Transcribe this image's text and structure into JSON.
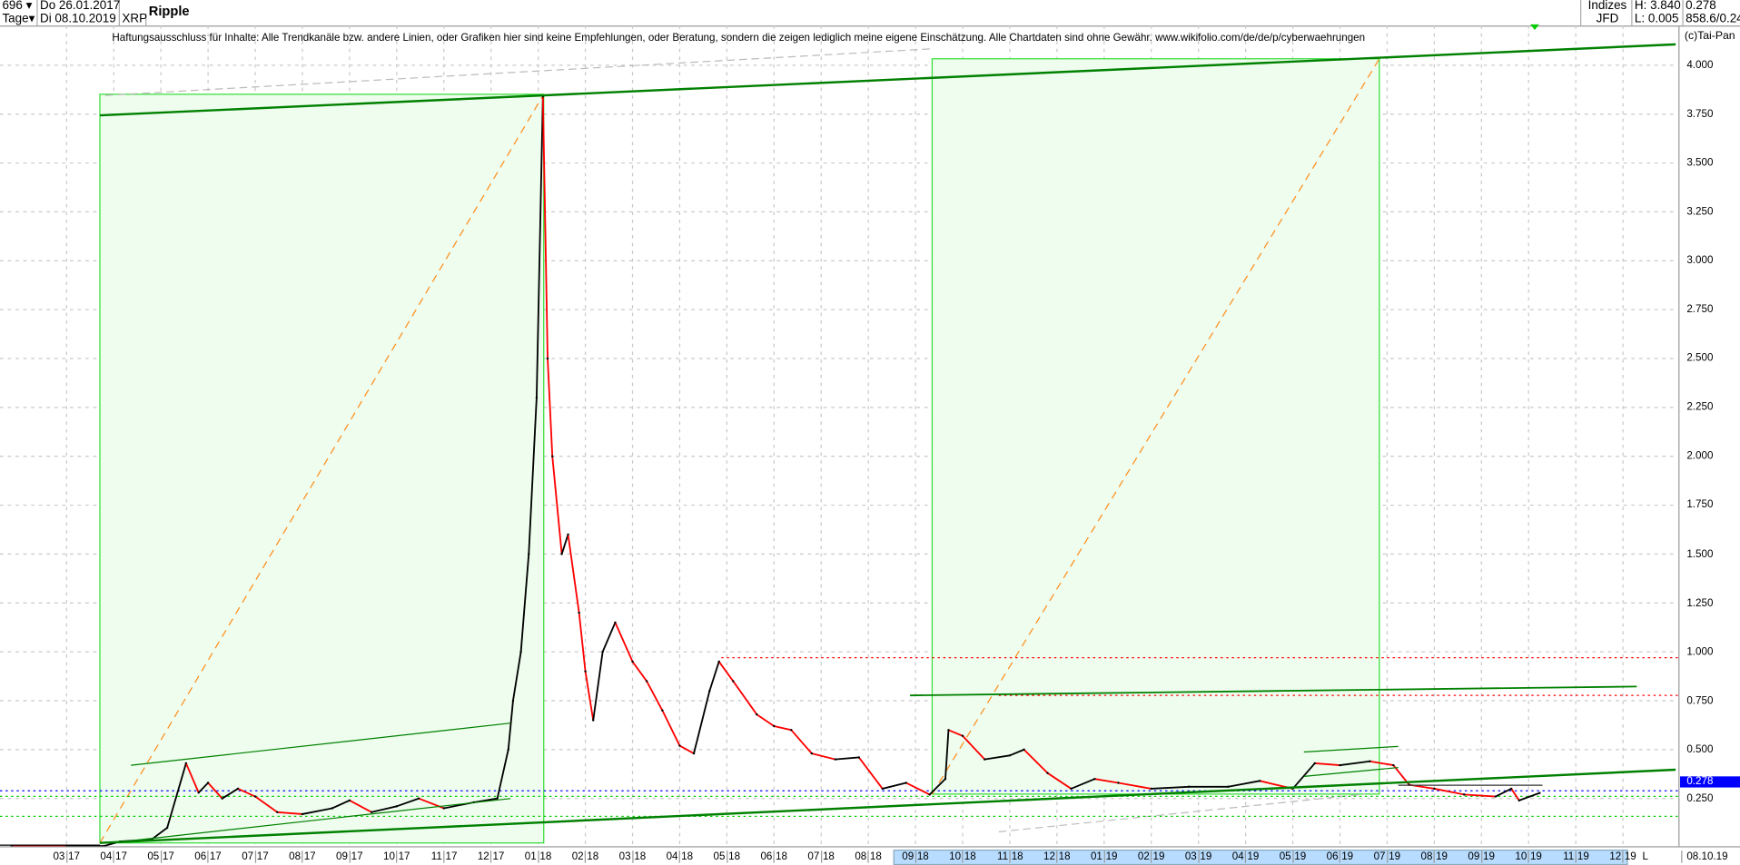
{
  "header": {
    "bars_count": "696",
    "period": "Tage",
    "date_from": "Do 26.01.2017",
    "date_to": "Di 08.10.2019",
    "symbol": "XRP",
    "name": "Ripple",
    "index_label": "Indizes",
    "source": "JFD",
    "high": "H: 3.840",
    "low": "L: 0.005",
    "last": "0.278",
    "extra": "858.6/0.24"
  },
  "disclaimer": "Haftungsausschluss für Inhalte: Alle Trendkanäle bzw. andere Linien, oder Grafiken hier sind keine Empfehlungen, oder Beratung, sondern die zeigen lediglich meine eigene Einschätzung. Alle Chartdaten sind ohne Gewähr.  www.wikifolio.com/de/de/p/cyberwaehrungen",
  "copyright": "(c)Tai-Pan",
  "footer": {
    "last_date": "08.10.19",
    "l_marker": "L"
  },
  "colors": {
    "up": "#000000",
    "down": "#ff0000",
    "trend": "#008000",
    "zone_fill": "#eefdee",
    "zone_border": "#33dd33",
    "fib": "#ff8c1a",
    "resistance": "#ff0000",
    "current": "#0000ff",
    "support": "#00cc00"
  },
  "chart_data": {
    "type": "line",
    "title": "Ripple",
    "ylim": [
      0,
      4.0
    ],
    "y_ticks": [
      "4.000",
      "3.750",
      "3.500",
      "3.250",
      "3.000",
      "2.750",
      "2.500",
      "2.250",
      "2.000",
      "1.750",
      "1.500",
      "1.250",
      "1.000",
      "0.750",
      "0.500",
      "0.250"
    ],
    "x_ticks": [
      [
        "03",
        "17"
      ],
      [
        "04",
        "17"
      ],
      [
        "05",
        "17"
      ],
      [
        "06",
        "17"
      ],
      [
        "07",
        "17"
      ],
      [
        "08",
        "17"
      ],
      [
        "09",
        "17"
      ],
      [
        "10",
        "17"
      ],
      [
        "11",
        "17"
      ],
      [
        "12",
        "17"
      ],
      [
        "01",
        "18"
      ],
      [
        "02",
        "18"
      ],
      [
        "03",
        "18"
      ],
      [
        "04",
        "18"
      ],
      [
        "05",
        "18"
      ],
      [
        "06",
        "18"
      ],
      [
        "07",
        "18"
      ],
      [
        "08",
        "18"
      ],
      [
        "09",
        "18"
      ],
      [
        "10",
        "18"
      ],
      [
        "11",
        "18"
      ],
      [
        "12",
        "18"
      ],
      [
        "01",
        "19"
      ],
      [
        "02",
        "19"
      ],
      [
        "03",
        "19"
      ],
      [
        "04",
        "19"
      ],
      [
        "05",
        "19"
      ],
      [
        "06",
        "19"
      ],
      [
        "07",
        "19"
      ],
      [
        "08",
        "19"
      ],
      [
        "09",
        "19"
      ],
      [
        "10",
        "19"
      ],
      [
        "11",
        "19"
      ],
      [
        "12",
        "19"
      ]
    ],
    "current_value": "0.278",
    "grid": true,
    "series": [
      [
        "2017-01-26",
        0.007
      ],
      [
        "2017-03-01",
        0.006
      ],
      [
        "2017-03-25",
        0.007
      ],
      [
        "2017-04-05",
        0.03
      ],
      [
        "2017-04-25",
        0.04
      ],
      [
        "2017-05-05",
        0.1
      ],
      [
        "2017-05-17",
        0.43
      ],
      [
        "2017-05-25",
        0.28
      ],
      [
        "2017-06-01",
        0.33
      ],
      [
        "2017-06-10",
        0.25
      ],
      [
        "2017-06-20",
        0.3
      ],
      [
        "2017-07-01",
        0.26
      ],
      [
        "2017-07-15",
        0.18
      ],
      [
        "2017-08-01",
        0.17
      ],
      [
        "2017-08-20",
        0.2
      ],
      [
        "2017-09-01",
        0.24
      ],
      [
        "2017-09-15",
        0.18
      ],
      [
        "2017-10-01",
        0.21
      ],
      [
        "2017-10-15",
        0.25
      ],
      [
        "2017-11-01",
        0.2
      ],
      [
        "2017-11-20",
        0.23
      ],
      [
        "2017-12-05",
        0.25
      ],
      [
        "2017-12-12",
        0.5
      ],
      [
        "2017-12-15",
        0.75
      ],
      [
        "2017-12-20",
        1.0
      ],
      [
        "2017-12-25",
        1.5
      ],
      [
        "2017-12-30",
        2.3
      ],
      [
        "2018-01-04",
        3.84
      ],
      [
        "2018-01-07",
        2.5
      ],
      [
        "2018-01-10",
        2.0
      ],
      [
        "2018-01-16",
        1.5
      ],
      [
        "2018-01-20",
        1.6
      ],
      [
        "2018-01-27",
        1.2
      ],
      [
        "2018-02-01",
        0.9
      ],
      [
        "2018-02-06",
        0.65
      ],
      [
        "2018-02-12",
        1.0
      ],
      [
        "2018-02-20",
        1.15
      ],
      [
        "2018-03-01",
        0.95
      ],
      [
        "2018-03-10",
        0.85
      ],
      [
        "2018-03-20",
        0.7
      ],
      [
        "2018-04-01",
        0.52
      ],
      [
        "2018-04-10",
        0.48
      ],
      [
        "2018-04-20",
        0.8
      ],
      [
        "2018-04-26",
        0.95
      ],
      [
        "2018-05-05",
        0.85
      ],
      [
        "2018-05-20",
        0.68
      ],
      [
        "2018-06-01",
        0.62
      ],
      [
        "2018-06-12",
        0.6
      ],
      [
        "2018-06-25",
        0.48
      ],
      [
        "2018-07-10",
        0.45
      ],
      [
        "2018-07-25",
        0.46
      ],
      [
        "2018-08-10",
        0.3
      ],
      [
        "2018-08-25",
        0.33
      ],
      [
        "2018-09-10",
        0.27
      ],
      [
        "2018-09-20",
        0.35
      ],
      [
        "2018-09-22",
        0.6
      ],
      [
        "2018-10-01",
        0.57
      ],
      [
        "2018-10-15",
        0.45
      ],
      [
        "2018-11-01",
        0.47
      ],
      [
        "2018-11-10",
        0.5
      ],
      [
        "2018-11-25",
        0.38
      ],
      [
        "2018-12-10",
        0.3
      ],
      [
        "2018-12-25",
        0.35
      ],
      [
        "2019-01-10",
        0.33
      ],
      [
        "2019-02-01",
        0.3
      ],
      [
        "2019-02-25",
        0.31
      ],
      [
        "2019-03-20",
        0.31
      ],
      [
        "2019-04-10",
        0.34
      ],
      [
        "2019-05-01",
        0.3
      ],
      [
        "2019-05-15",
        0.43
      ],
      [
        "2019-06-01",
        0.42
      ],
      [
        "2019-06-20",
        0.44
      ],
      [
        "2019-07-05",
        0.42
      ],
      [
        "2019-07-15",
        0.32
      ],
      [
        "2019-08-01",
        0.3
      ],
      [
        "2019-08-20",
        0.27
      ],
      [
        "2019-09-10",
        0.26
      ],
      [
        "2019-09-20",
        0.3
      ],
      [
        "2019-09-25",
        0.24
      ],
      [
        "2019-10-08",
        0.278
      ]
    ]
  }
}
